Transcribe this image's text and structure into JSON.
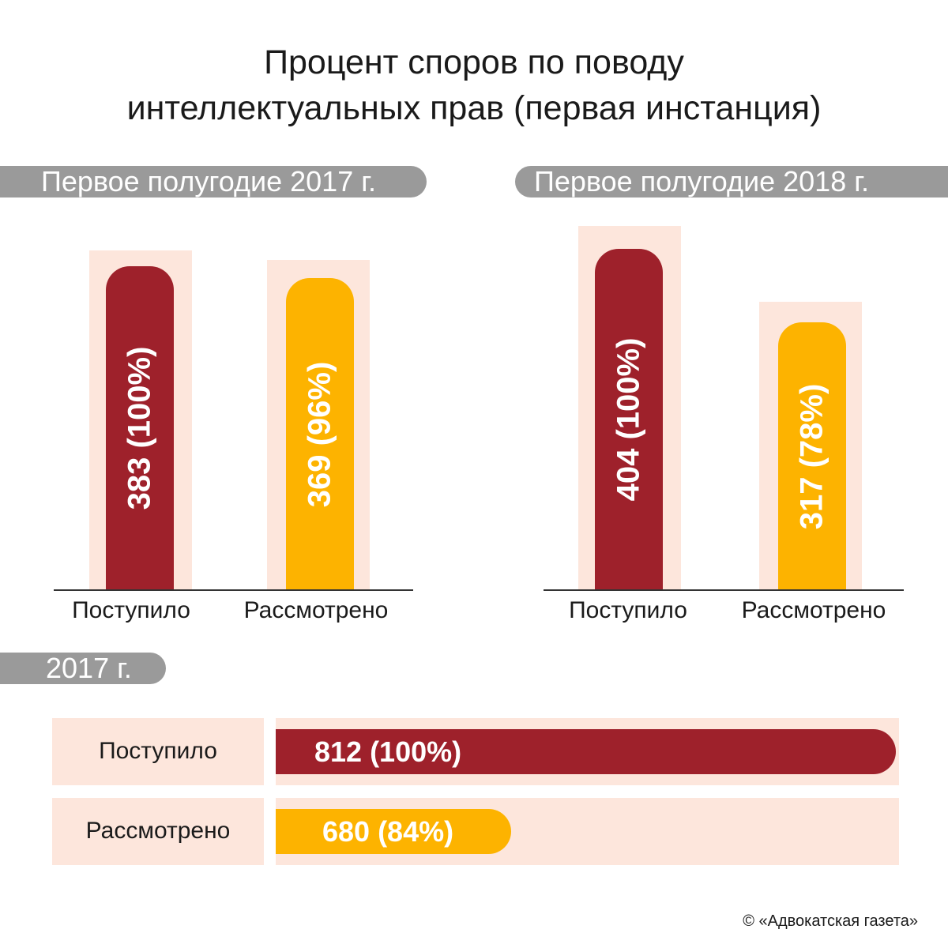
{
  "title_line1": "Процент споров по поводу",
  "title_line2": "интеллектуальных прав (первая инстанция)",
  "copyright": "© «Адвокатская газета»",
  "colors": {
    "received": "#9e212b",
    "reviewed": "#fdb300",
    "highlight": "#fde6dc",
    "pill": "#9a9a9a"
  },
  "chart_data": [
    {
      "type": "bar",
      "title": "Первое полугодие 2017 г.",
      "categories": [
        "Поступило",
        "Рассмотрено"
      ],
      "values": [
        383,
        369
      ],
      "value_labels": [
        "383 (100%)",
        "369 (96%)"
      ],
      "percent": [
        100,
        96
      ]
    },
    {
      "type": "bar",
      "title": "Первое полугодие 2018 г.",
      "categories": [
        "Поступило",
        "Рассмотрено"
      ],
      "values": [
        404,
        317
      ],
      "value_labels": [
        "404 (100%)",
        "317 (78%)"
      ],
      "percent": [
        100,
        78
      ]
    },
    {
      "type": "bar",
      "orientation": "horizontal",
      "title": "2017 г.",
      "categories": [
        "Поступило",
        "Рассмотрено"
      ],
      "values": [
        812,
        680
      ],
      "value_labels": [
        "812 (100%)",
        "680 (84%)"
      ],
      "percent": [
        100,
        84
      ]
    }
  ]
}
